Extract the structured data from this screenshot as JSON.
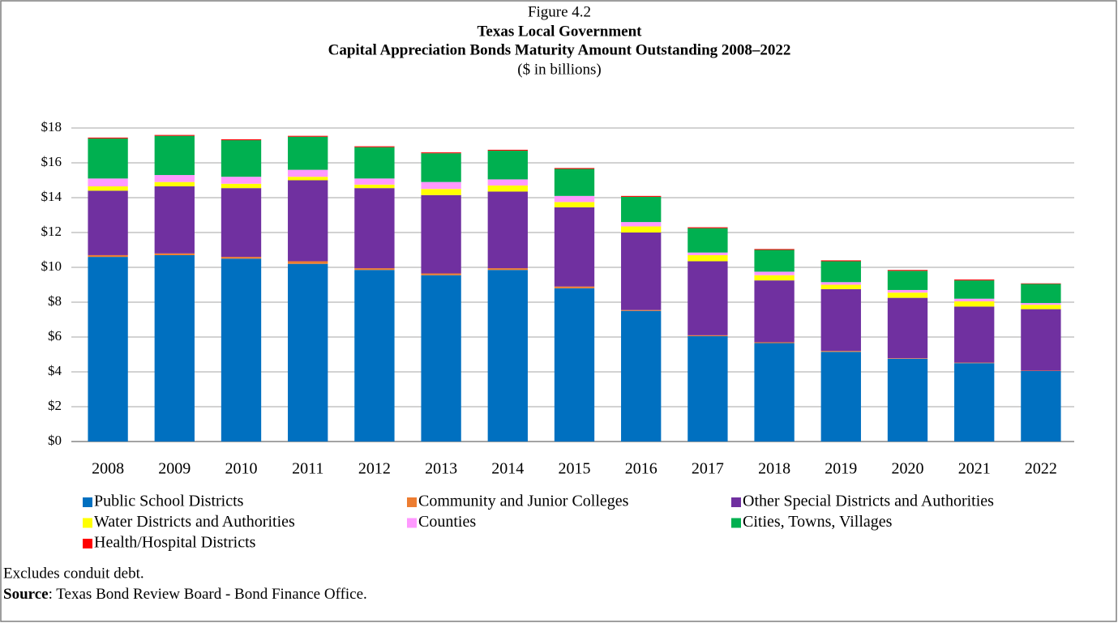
{
  "chart_data": {
    "type": "stacked_bar",
    "figure_label": "Figure 4.2",
    "title": [
      "Texas Local Government",
      "Capital Appreciation Bonds Maturity Amount Outstanding 2008–2022"
    ],
    "subtitle": "($ in billions)",
    "categories": [
      "2008",
      "2009",
      "2010",
      "2011",
      "2012",
      "2013",
      "2014",
      "2015",
      "2016",
      "2017",
      "2018",
      "2019",
      "2020",
      "2021",
      "2022"
    ],
    "series": [
      {
        "name": "Public School Districts",
        "color": "#0070c0",
        "values": [
          10.6,
          10.7,
          10.5,
          10.2,
          9.85,
          9.55,
          9.85,
          8.8,
          7.5,
          6.05,
          5.65,
          5.15,
          4.75,
          4.5,
          4.05
        ]
      },
      {
        "name": "Community and Junior Colleges",
        "color": "#ed7d31",
        "values": [
          0.1,
          0.1,
          0.1,
          0.15,
          0.1,
          0.1,
          0.1,
          0.1,
          0.05,
          0.05,
          0.05,
          0.05,
          0.03,
          0.03,
          0.02
        ]
      },
      {
        "name": "Other Special Districts and Authorities",
        "color": "#7030a0",
        "values": [
          3.7,
          3.85,
          3.95,
          4.65,
          4.6,
          4.5,
          4.4,
          4.55,
          4.45,
          4.25,
          3.55,
          3.55,
          3.47,
          3.22,
          3.53
        ]
      },
      {
        "name": "Water Districts and Authorities",
        "color": "#ffff00",
        "values": [
          0.25,
          0.25,
          0.25,
          0.2,
          0.2,
          0.35,
          0.35,
          0.3,
          0.35,
          0.35,
          0.3,
          0.25,
          0.3,
          0.3,
          0.25
        ]
      },
      {
        "name": "Counties",
        "color": "#ff99ff",
        "values": [
          0.45,
          0.4,
          0.4,
          0.4,
          0.35,
          0.4,
          0.35,
          0.35,
          0.25,
          0.15,
          0.2,
          0.15,
          0.15,
          0.15,
          0.1
        ]
      },
      {
        "name": "Cities, Towns, Villages",
        "color": "#00b050",
        "values": [
          2.3,
          2.25,
          2.1,
          1.9,
          1.8,
          1.65,
          1.65,
          1.55,
          1.45,
          1.4,
          1.25,
          1.2,
          1.1,
          1.05,
          1.1
        ]
      },
      {
        "name": "Health/Hospital Districts",
        "color": "#ff0000",
        "values": [
          0.05,
          0.05,
          0.05,
          0.05,
          0.05,
          0.05,
          0.05,
          0.05,
          0.05,
          0.05,
          0.05,
          0.05,
          0.05,
          0.05,
          0.03
        ]
      }
    ],
    "ylim": [
      0,
      18
    ],
    "yticks": [
      {
        "value": 0,
        "label": "$0"
      },
      {
        "value": 2,
        "label": "$2"
      },
      {
        "value": 4,
        "label": "$4"
      },
      {
        "value": 6,
        "label": "$6"
      },
      {
        "value": 8,
        "label": "$8"
      },
      {
        "value": 10,
        "label": "$10"
      },
      {
        "value": 12,
        "label": "$12"
      },
      {
        "value": 14,
        "label": "$14"
      },
      {
        "value": 16,
        "label": "$16"
      },
      {
        "value": 18,
        "label": "$18"
      }
    ],
    "grid": true,
    "note": "Excludes conduit debt.",
    "source": {
      "label": "Source",
      "text": ": Texas Bond Review Board - Bond Finance Office."
    }
  }
}
